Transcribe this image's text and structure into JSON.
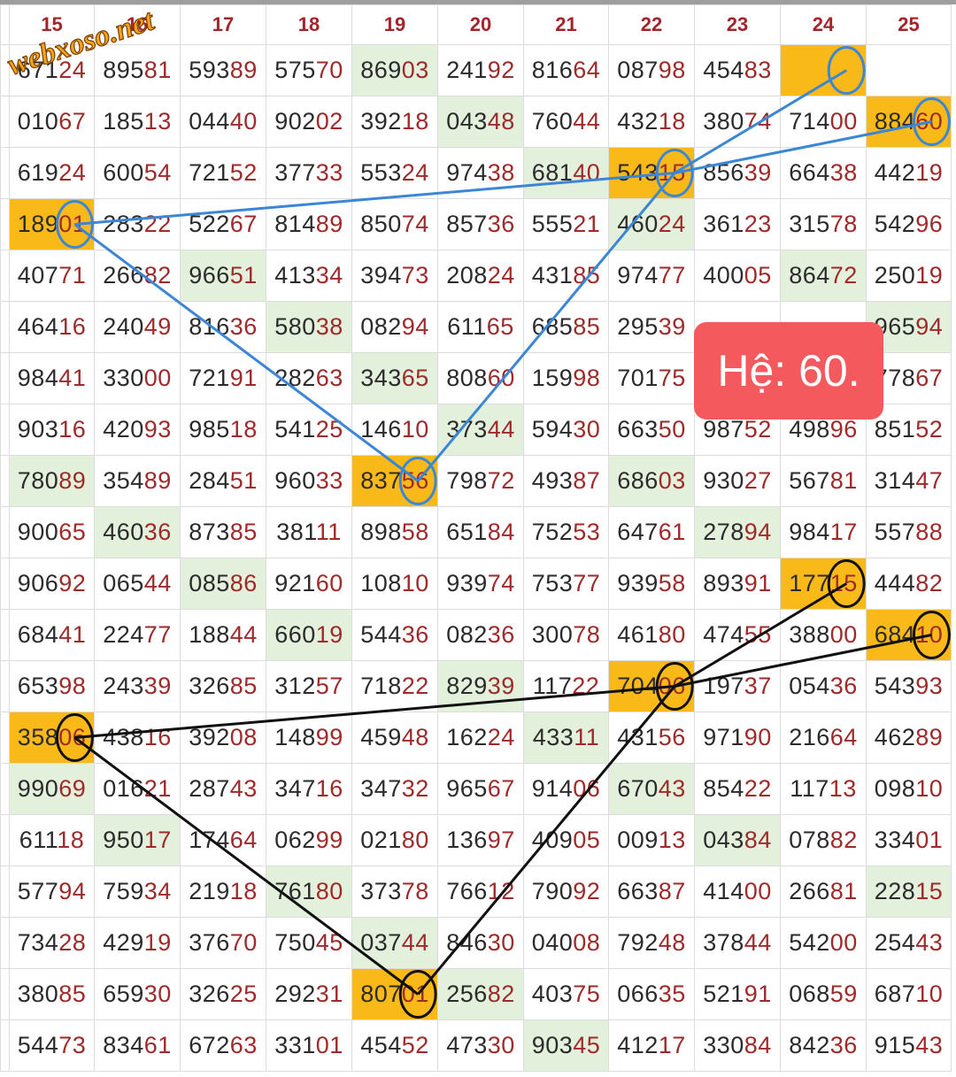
{
  "watermark": "webxoso.net",
  "badge": {
    "text": "Hệ: 60."
  },
  "colors": {
    "accent_orange": "#f9ba19",
    "green_cell": "#e3f1dc",
    "header_red": "#a3242a",
    "badge_red": "#f45a5d",
    "blue_line": "#3b86d6",
    "black_line": "#111111"
  },
  "headers": [
    "15",
    "16",
    "17",
    "18",
    "19",
    "20",
    "21",
    "22",
    "23",
    "24",
    "25"
  ],
  "rows": [
    {
      "cells": [
        {
          "t": "67124",
          "s": ""
        },
        {
          "t": "89581",
          "s": ""
        },
        {
          "t": "59389",
          "s": ""
        },
        {
          "t": "57570",
          "s": ""
        },
        {
          "t": "86903",
          "s": "g"
        },
        {
          "t": "24192",
          "s": ""
        },
        {
          "t": "81664",
          "s": ""
        },
        {
          "t": "08798",
          "s": ""
        },
        {
          "t": "45483",
          "s": ""
        },
        {
          "t": "",
          "s": "o"
        },
        {
          "t": "",
          "s": "blank"
        }
      ]
    },
    {
      "cells": [
        {
          "t": "01067",
          "s": ""
        },
        {
          "t": "18513",
          "s": ""
        },
        {
          "t": "04440",
          "s": ""
        },
        {
          "t": "90202",
          "s": ""
        },
        {
          "t": "39218",
          "s": ""
        },
        {
          "t": "04348",
          "s": "g"
        },
        {
          "t": "76044",
          "s": ""
        },
        {
          "t": "43218",
          "s": ""
        },
        {
          "t": "38074",
          "s": ""
        },
        {
          "t": "71400",
          "s": ""
        },
        {
          "t": "88460",
          "s": "o"
        }
      ]
    },
    {
      "cells": [
        {
          "t": "61924",
          "s": ""
        },
        {
          "t": "60054",
          "s": ""
        },
        {
          "t": "72152",
          "s": ""
        },
        {
          "t": "37733",
          "s": ""
        },
        {
          "t": "55324",
          "s": ""
        },
        {
          "t": "97438",
          "s": ""
        },
        {
          "t": "68140",
          "s": "g"
        },
        {
          "t": "54315",
          "s": "o"
        },
        {
          "t": "85639",
          "s": ""
        },
        {
          "t": "66438",
          "s": ""
        },
        {
          "t": "44219",
          "s": ""
        }
      ]
    },
    {
      "cells": [
        {
          "t": "18901",
          "s": "o"
        },
        {
          "t": "28322",
          "s": ""
        },
        {
          "t": "52267",
          "s": ""
        },
        {
          "t": "81489",
          "s": ""
        },
        {
          "t": "85074",
          "s": ""
        },
        {
          "t": "85736",
          "s": ""
        },
        {
          "t": "55521",
          "s": ""
        },
        {
          "t": "46024",
          "s": "g"
        },
        {
          "t": "36123",
          "s": ""
        },
        {
          "t": "31578",
          "s": ""
        },
        {
          "t": "54296",
          "s": ""
        }
      ]
    },
    {
      "cells": [
        {
          "t": "40771",
          "s": ""
        },
        {
          "t": "26682",
          "s": ""
        },
        {
          "t": "96651",
          "s": "g"
        },
        {
          "t": "41334",
          "s": ""
        },
        {
          "t": "39473",
          "s": ""
        },
        {
          "t": "20824",
          "s": ""
        },
        {
          "t": "43185",
          "s": ""
        },
        {
          "t": "97477",
          "s": ""
        },
        {
          "t": "40005",
          "s": ""
        },
        {
          "t": "86472",
          "s": "g"
        },
        {
          "t": "25019",
          "s": ""
        }
      ]
    },
    {
      "cells": [
        {
          "t": "46416",
          "s": ""
        },
        {
          "t": "24049",
          "s": ""
        },
        {
          "t": "81636",
          "s": ""
        },
        {
          "t": "58038",
          "s": "g"
        },
        {
          "t": "08294",
          "s": ""
        },
        {
          "t": "61165",
          "s": ""
        },
        {
          "t": "68585",
          "s": ""
        },
        {
          "t": "29539",
          "s": ""
        },
        {
          "t": "",
          "s": ""
        },
        {
          "t": "",
          "s": ""
        },
        {
          "t": "96594",
          "s": "g"
        }
      ]
    },
    {
      "cells": [
        {
          "t": "98441",
          "s": ""
        },
        {
          "t": "33000",
          "s": ""
        },
        {
          "t": "72191",
          "s": ""
        },
        {
          "t": "28263",
          "s": ""
        },
        {
          "t": "34365",
          "s": "g"
        },
        {
          "t": "80860",
          "s": ""
        },
        {
          "t": "15998",
          "s": ""
        },
        {
          "t": "70175",
          "s": ""
        },
        {
          "t": "",
          "s": ""
        },
        {
          "t": "",
          "s": ""
        },
        {
          "t": "77867",
          "s": ""
        }
      ]
    },
    {
      "cells": [
        {
          "t": "90316",
          "s": ""
        },
        {
          "t": "42093",
          "s": ""
        },
        {
          "t": "98518",
          "s": ""
        },
        {
          "t": "54125",
          "s": ""
        },
        {
          "t": "14610",
          "s": ""
        },
        {
          "t": "37344",
          "s": "g"
        },
        {
          "t": "59430",
          "s": ""
        },
        {
          "t": "66350",
          "s": ""
        },
        {
          "t": "98752",
          "s": ""
        },
        {
          "t": "49896",
          "s": ""
        },
        {
          "t": "85152",
          "s": ""
        }
      ]
    },
    {
      "cells": [
        {
          "t": "78089",
          "s": "g"
        },
        {
          "t": "35489",
          "s": ""
        },
        {
          "t": "28451",
          "s": ""
        },
        {
          "t": "96033",
          "s": ""
        },
        {
          "t": "83756",
          "s": "o"
        },
        {
          "t": "79872",
          "s": ""
        },
        {
          "t": "49387",
          "s": ""
        },
        {
          "t": "68603",
          "s": "g"
        },
        {
          "t": "93027",
          "s": ""
        },
        {
          "t": "56781",
          "s": ""
        },
        {
          "t": "31447",
          "s": ""
        }
      ]
    },
    {
      "cells": [
        {
          "t": "90065",
          "s": ""
        },
        {
          "t": "46036",
          "s": "g"
        },
        {
          "t": "87385",
          "s": ""
        },
        {
          "t": "38111",
          "s": ""
        },
        {
          "t": "89858",
          "s": ""
        },
        {
          "t": "65184",
          "s": ""
        },
        {
          "t": "75253",
          "s": ""
        },
        {
          "t": "64761",
          "s": ""
        },
        {
          "t": "27894",
          "s": "g"
        },
        {
          "t": "98417",
          "s": ""
        },
        {
          "t": "55788",
          "s": ""
        }
      ]
    },
    {
      "cells": [
        {
          "t": "90692",
          "s": ""
        },
        {
          "t": "06544",
          "s": ""
        },
        {
          "t": "08586",
          "s": "g"
        },
        {
          "t": "92160",
          "s": ""
        },
        {
          "t": "10810",
          "s": ""
        },
        {
          "t": "93974",
          "s": ""
        },
        {
          "t": "75377",
          "s": ""
        },
        {
          "t": "93958",
          "s": ""
        },
        {
          "t": "89391",
          "s": ""
        },
        {
          "t": "17715",
          "s": "o"
        },
        {
          "t": "44482",
          "s": ""
        }
      ]
    },
    {
      "cells": [
        {
          "t": "68441",
          "s": ""
        },
        {
          "t": "22477",
          "s": ""
        },
        {
          "t": "18844",
          "s": ""
        },
        {
          "t": "66019",
          "s": "g"
        },
        {
          "t": "54436",
          "s": ""
        },
        {
          "t": "08236",
          "s": ""
        },
        {
          "t": "30078",
          "s": ""
        },
        {
          "t": "46180",
          "s": ""
        },
        {
          "t": "47455",
          "s": ""
        },
        {
          "t": "38800",
          "s": ""
        },
        {
          "t": "68410",
          "s": "o"
        }
      ]
    },
    {
      "cells": [
        {
          "t": "65398",
          "s": ""
        },
        {
          "t": "24339",
          "s": ""
        },
        {
          "t": "32685",
          "s": ""
        },
        {
          "t": "31257",
          "s": ""
        },
        {
          "t": "71822",
          "s": ""
        },
        {
          "t": "82939",
          "s": "g"
        },
        {
          "t": "11722",
          "s": ""
        },
        {
          "t": "70406",
          "s": "o"
        },
        {
          "t": "19737",
          "s": ""
        },
        {
          "t": "05436",
          "s": ""
        },
        {
          "t": "54393",
          "s": ""
        }
      ]
    },
    {
      "cells": [
        {
          "t": "35806",
          "s": "o"
        },
        {
          "t": "43816",
          "s": ""
        },
        {
          "t": "39208",
          "s": ""
        },
        {
          "t": "14899",
          "s": ""
        },
        {
          "t": "45948",
          "s": ""
        },
        {
          "t": "16224",
          "s": ""
        },
        {
          "t": "43311",
          "s": "g"
        },
        {
          "t": "43156",
          "s": ""
        },
        {
          "t": "97190",
          "s": ""
        },
        {
          "t": "21664",
          "s": ""
        },
        {
          "t": "46289",
          "s": ""
        }
      ]
    },
    {
      "cells": [
        {
          "t": "99069",
          "s": "g"
        },
        {
          "t": "01621",
          "s": ""
        },
        {
          "t": "28743",
          "s": ""
        },
        {
          "t": "34716",
          "s": ""
        },
        {
          "t": "34732",
          "s": ""
        },
        {
          "t": "96567",
          "s": ""
        },
        {
          "t": "91406",
          "s": ""
        },
        {
          "t": "67043",
          "s": "g"
        },
        {
          "t": "85422",
          "s": ""
        },
        {
          "t": "11713",
          "s": ""
        },
        {
          "t": "09810",
          "s": ""
        }
      ]
    },
    {
      "cells": [
        {
          "t": "61118",
          "s": ""
        },
        {
          "t": "95017",
          "s": "g"
        },
        {
          "t": "17464",
          "s": ""
        },
        {
          "t": "06299",
          "s": ""
        },
        {
          "t": "02180",
          "s": ""
        },
        {
          "t": "13697",
          "s": ""
        },
        {
          "t": "40905",
          "s": ""
        },
        {
          "t": "00913",
          "s": ""
        },
        {
          "t": "04384",
          "s": "g"
        },
        {
          "t": "07882",
          "s": ""
        },
        {
          "t": "33401",
          "s": ""
        }
      ]
    },
    {
      "cells": [
        {
          "t": "57794",
          "s": ""
        },
        {
          "t": "75934",
          "s": ""
        },
        {
          "t": "21918",
          "s": ""
        },
        {
          "t": "76180",
          "s": "g"
        },
        {
          "t": "37378",
          "s": ""
        },
        {
          "t": "76612",
          "s": ""
        },
        {
          "t": "79092",
          "s": ""
        },
        {
          "t": "66387",
          "s": ""
        },
        {
          "t": "41400",
          "s": ""
        },
        {
          "t": "26681",
          "s": ""
        },
        {
          "t": "22815",
          "s": "g"
        }
      ]
    },
    {
      "cells": [
        {
          "t": "73428",
          "s": ""
        },
        {
          "t": "42919",
          "s": ""
        },
        {
          "t": "37670",
          "s": ""
        },
        {
          "t": "75045",
          "s": ""
        },
        {
          "t": "03744",
          "s": "g"
        },
        {
          "t": "84630",
          "s": ""
        },
        {
          "t": "04008",
          "s": ""
        },
        {
          "t": "79248",
          "s": ""
        },
        {
          "t": "37844",
          "s": ""
        },
        {
          "t": "54200",
          "s": ""
        },
        {
          "t": "25443",
          "s": ""
        }
      ]
    },
    {
      "cells": [
        {
          "t": "38085",
          "s": ""
        },
        {
          "t": "65930",
          "s": ""
        },
        {
          "t": "32625",
          "s": ""
        },
        {
          "t": "29231",
          "s": ""
        },
        {
          "t": "80701",
          "s": "o"
        },
        {
          "t": "25682",
          "s": "g"
        },
        {
          "t": "40375",
          "s": ""
        },
        {
          "t": "06635",
          "s": ""
        },
        {
          "t": "52191",
          "s": ""
        },
        {
          "t": "06859",
          "s": ""
        },
        {
          "t": "68710",
          "s": ""
        }
      ]
    },
    {
      "cells": [
        {
          "t": "54473",
          "s": ""
        },
        {
          "t": "83461",
          "s": ""
        },
        {
          "t": "67263",
          "s": ""
        },
        {
          "t": "33101",
          "s": ""
        },
        {
          "t": "45452",
          "s": ""
        },
        {
          "t": "47330",
          "s": ""
        },
        {
          "t": "90345",
          "s": "g"
        },
        {
          "t": "41217",
          "s": ""
        },
        {
          "t": "33084",
          "s": ""
        },
        {
          "t": "84236",
          "s": ""
        },
        {
          "t": "91543",
          "s": ""
        }
      ]
    }
  ],
  "markers": {
    "blue": [
      {
        "row": 0,
        "col": 9
      },
      {
        "row": 1,
        "col": 10
      },
      {
        "row": 2,
        "col": 7
      },
      {
        "row": 3,
        "col": 0
      },
      {
        "row": 8,
        "col": 4
      }
    ],
    "black": [
      {
        "row": 10,
        "col": 9
      },
      {
        "row": 11,
        "col": 10
      },
      {
        "row": 12,
        "col": 7
      },
      {
        "row": 13,
        "col": 0
      },
      {
        "row": 18,
        "col": 4
      }
    ]
  },
  "links": {
    "blue": [
      [
        0,
        2
      ],
      [
        1,
        2
      ],
      [
        2,
        3
      ],
      [
        3,
        4
      ],
      [
        4,
        2
      ]
    ],
    "black": [
      [
        0,
        2
      ],
      [
        1,
        2
      ],
      [
        2,
        3
      ],
      [
        3,
        4
      ],
      [
        4,
        2
      ]
    ]
  }
}
